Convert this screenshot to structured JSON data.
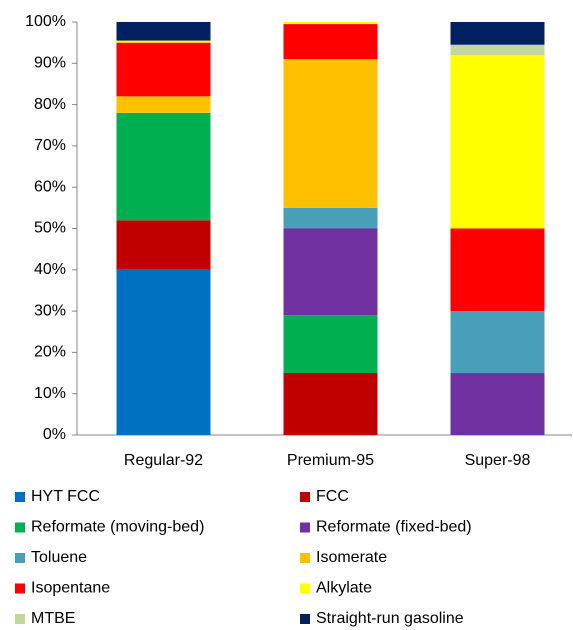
{
  "chart_data": {
    "type": "stacked_bar",
    "categories": [
      "Regular-92",
      "Premium-95",
      "Super-98"
    ],
    "series": [
      {
        "name": "HYT FCC",
        "color": "#0070c0",
        "values": [
          40,
          0,
          0
        ]
      },
      {
        "name": "FCC",
        "color": "#c00000",
        "values": [
          12,
          15,
          0
        ]
      },
      {
        "name": "Reformate (moving-bed)",
        "color": "#00b050",
        "values": [
          26,
          14,
          0
        ]
      },
      {
        "name": "Reformate (fixed-bed)",
        "color": "#7030a0",
        "values": [
          0,
          21,
          15
        ]
      },
      {
        "name": "Toluene",
        "color": "#4a9fb8",
        "values": [
          0,
          5,
          15
        ]
      },
      {
        "name": "Isomerate",
        "color": "#ffc000",
        "values": [
          4,
          36,
          0
        ]
      },
      {
        "name": "Isopentane",
        "color": "#ff0000",
        "values": [
          13,
          8.5,
          20
        ]
      },
      {
        "name": "Alkylate",
        "color": "#ffff00",
        "values": [
          0.5,
          0.5,
          42
        ]
      },
      {
        "name": "MTBE",
        "color": "#c4d79b",
        "values": [
          0,
          0,
          2.5
        ]
      },
      {
        "name": "Straight-run gasoline",
        "color": "#002060",
        "values": [
          4.5,
          0,
          5.5
        ]
      }
    ],
    "ylim": [
      0,
      100
    ],
    "yticks": [
      {
        "value": 0,
        "label": "0%"
      },
      {
        "value": 10,
        "label": "10%"
      },
      {
        "value": 20,
        "label": "20%"
      },
      {
        "value": 30,
        "label": "30%"
      },
      {
        "value": 40,
        "label": "40%"
      },
      {
        "value": 50,
        "label": "50%"
      },
      {
        "value": 60,
        "label": "60%"
      },
      {
        "value": 70,
        "label": "70%"
      },
      {
        "value": 80,
        "label": "80%"
      },
      {
        "value": 90,
        "label": "90%"
      },
      {
        "value": 100,
        "label": "100%"
      }
    ],
    "legend": "bottom"
  }
}
